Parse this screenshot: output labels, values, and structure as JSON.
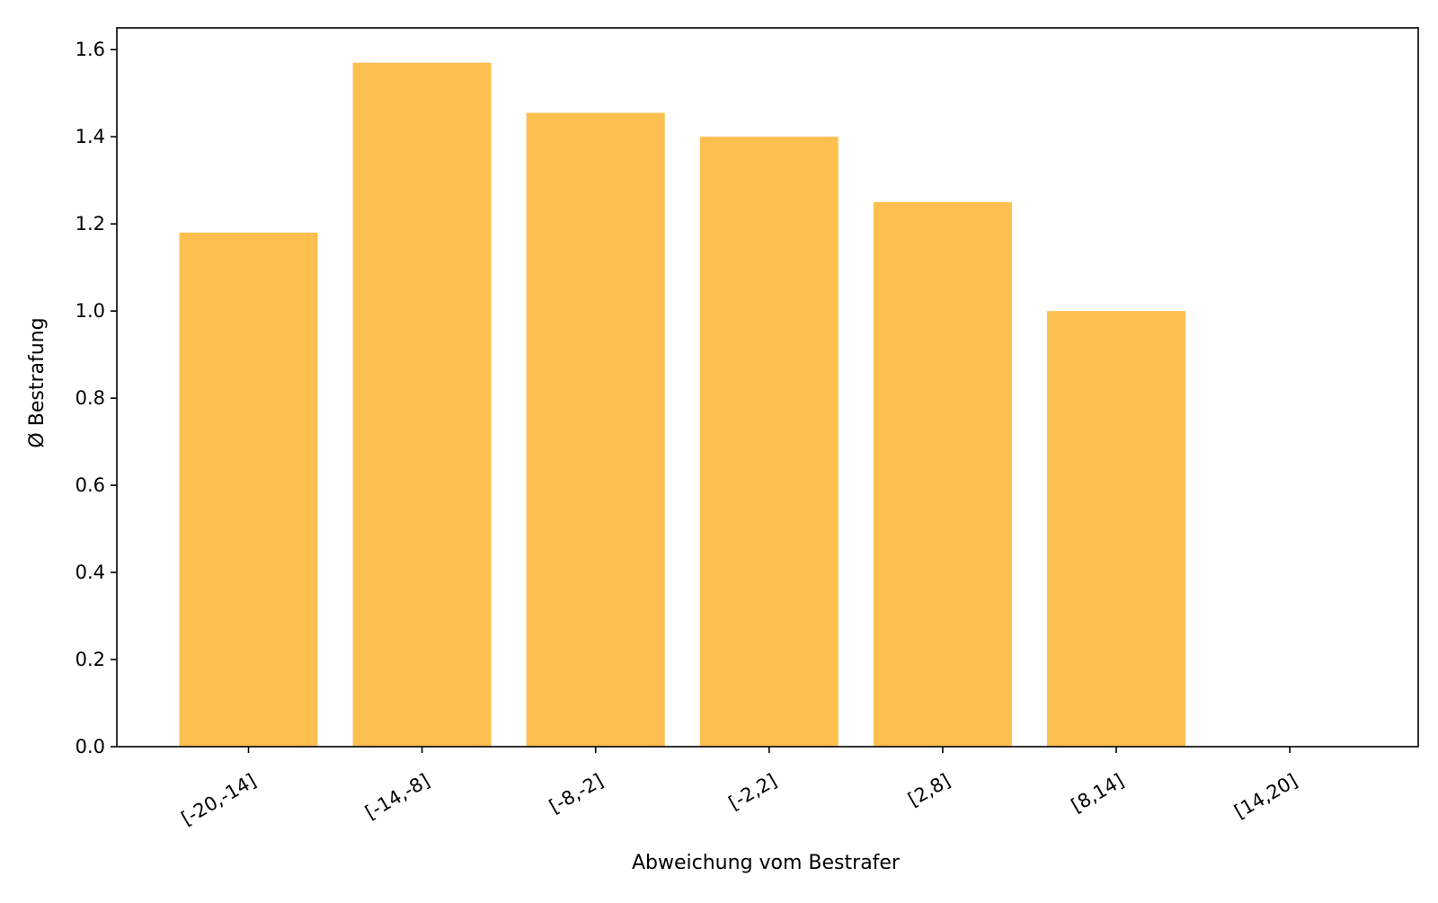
{
  "chart_data": {
    "type": "bar",
    "title": "",
    "xlabel": "Abweichung vom Bestrafer",
    "ylabel": "Ø Bestrafung",
    "categories": [
      "[-20,-14]",
      "[-14,-8]",
      "[-8,-2]",
      "[-2,2]",
      "[2,8]",
      "[8,14]",
      "[14,20]"
    ],
    "values": [
      1.18,
      1.57,
      1.455,
      1.4,
      1.25,
      1.0,
      0
    ],
    "ylim": [
      0,
      1.65
    ],
    "yticks": [
      "0.0",
      "0.2",
      "0.4",
      "0.6",
      "0.8",
      "1.0",
      "1.2",
      "1.4",
      "1.6"
    ],
    "bar_color": "#FDBF50",
    "grid": false,
    "legend": "none"
  }
}
